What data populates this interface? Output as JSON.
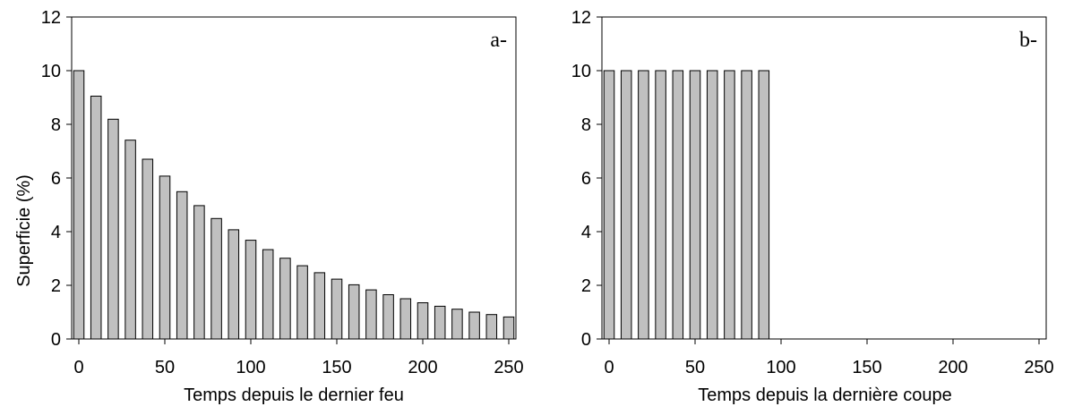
{
  "chart_data": [
    {
      "type": "bar",
      "panel_label": "a-",
      "xlabel": "Temps depuis le dernier feu",
      "ylabel": "Superficie (%)",
      "xlim": [
        0,
        250
      ],
      "ylim": [
        0,
        12
      ],
      "xticks": [
        0,
        50,
        100,
        150,
        200,
        250
      ],
      "yticks": [
        0,
        2,
        4,
        6,
        8,
        10,
        12
      ],
      "bar_width": 6,
      "x": [
        0,
        10,
        20,
        30,
        40,
        50,
        60,
        70,
        80,
        90,
        100,
        110,
        120,
        130,
        140,
        150,
        160,
        170,
        180,
        190,
        200,
        210,
        220,
        230,
        240,
        250
      ],
      "values": [
        10.0,
        9.05,
        8.19,
        7.41,
        6.7,
        6.07,
        5.49,
        4.97,
        4.49,
        4.07,
        3.68,
        3.33,
        3.01,
        2.73,
        2.47,
        2.23,
        2.02,
        1.83,
        1.65,
        1.5,
        1.35,
        1.22,
        1.11,
        1.0,
        0.91,
        0.82
      ],
      "grid": false,
      "bar_color": "#c0c0c0"
    },
    {
      "type": "bar",
      "panel_label": "b-",
      "xlabel": "Temps depuis la dernière coupe",
      "ylabel": "",
      "xlim": [
        0,
        250
      ],
      "ylim": [
        0,
        12
      ],
      "xticks": [
        0,
        50,
        100,
        150,
        200,
        250
      ],
      "yticks": [
        0,
        2,
        4,
        6,
        8,
        10,
        12
      ],
      "bar_width": 6,
      "x": [
        0,
        10,
        20,
        30,
        40,
        50,
        60,
        70,
        80,
        90
      ],
      "values": [
        10,
        10,
        10,
        10,
        10,
        10,
        10,
        10,
        10,
        10
      ],
      "grid": false,
      "bar_color": "#c0c0c0"
    }
  ]
}
